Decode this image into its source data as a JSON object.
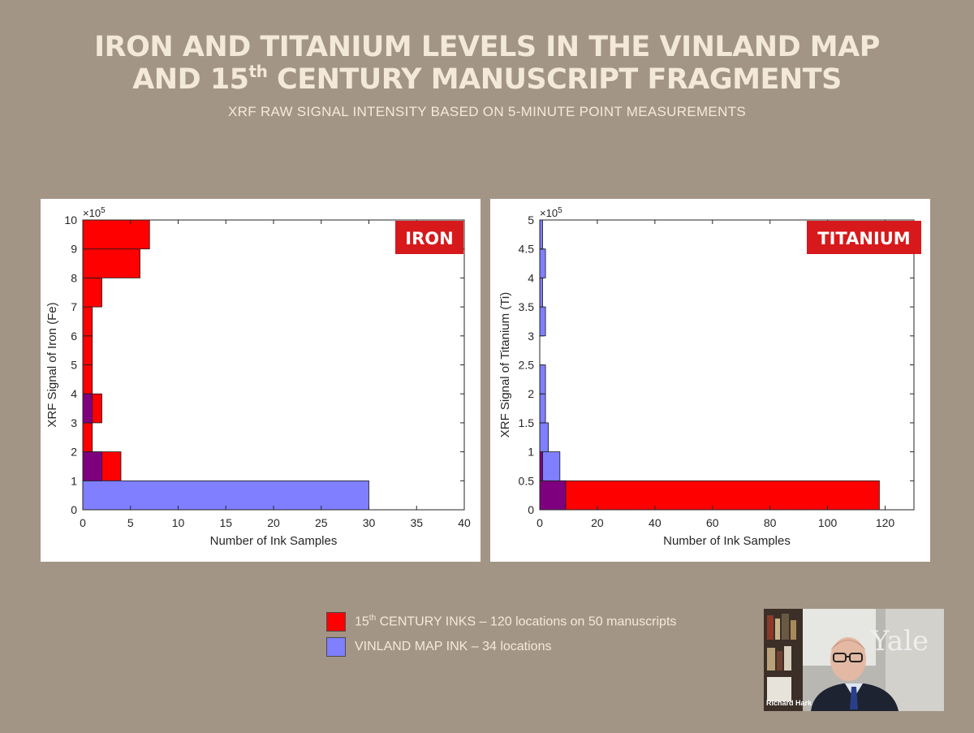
{
  "slide": {
    "title_line1": "IRON AND TITANIUM LEVELS IN THE VINLAND MAP",
    "title_line2_pre": "AND 15",
    "title_line2_sup": "th",
    "title_line2_post": " CENTURY MANUSCRIPT FRAGMENTS",
    "subtitle": "XRF RAW SIGNAL INTENSITY BASED ON 5-MINUTE POINT MEASUREMENTS"
  },
  "legend": {
    "items": [
      {
        "pre": "15",
        "sup": "th",
        "post": " CENTURY INKS – 120 locations on 50 manuscripts",
        "color": "#ff0000"
      },
      {
        "pre": "VINLAND MAP INK – 34 locations",
        "sup": "",
        "post": "",
        "color": "#7f7fff"
      }
    ]
  },
  "video": {
    "speaker_name": "Richard Hark",
    "logo_text": "Yale"
  },
  "colors": {
    "background": "#a39585",
    "red": "#ff0000",
    "blue": "#7f7fff",
    "overlap": "#7f007f",
    "tag": "#d7191c"
  },
  "chart_data": [
    {
      "type": "bar",
      "orientation": "horizontal",
      "tag": "IRON",
      "xlabel": "Number of Ink Samples",
      "ylabel": "XRF Signal of Iron (Fe)",
      "exponent": "×10",
      "exponent_power": "5",
      "xlim": [
        0,
        40
      ],
      "ylim": [
        0,
        10
      ],
      "xticks": [
        0,
        5,
        10,
        15,
        20,
        25,
        30,
        35,
        40
      ],
      "yticks": [
        0,
        1,
        2,
        3,
        4,
        5,
        6,
        7,
        8,
        9,
        10
      ],
      "bin_edges": [
        1,
        2,
        3,
        4,
        5,
        6,
        7,
        8,
        9,
        10
      ],
      "series": [
        {
          "name": "15th CENTURY INKS",
          "values": [
            4,
            1,
            2,
            1,
            1,
            1,
            2,
            6,
            7
          ]
        },
        {
          "name": "VINLAND MAP INK",
          "bin_edges": [
            0,
            1,
            2,
            3,
            4
          ],
          "values": [
            30,
            2,
            0,
            1
          ]
        }
      ]
    },
    {
      "type": "bar",
      "orientation": "horizontal",
      "tag": "TITANIUM",
      "xlabel": "Number of Ink Samples",
      "ylabel": "XRF Signal of Titanium (Ti)",
      "exponent": "×10",
      "exponent_power": "5",
      "xlim": [
        0,
        130
      ],
      "ylim": [
        0,
        5
      ],
      "xticks": [
        0,
        20,
        40,
        60,
        80,
        100,
        120
      ],
      "yticks": [
        0,
        0.5,
        1,
        1.5,
        2,
        2.5,
        3,
        3.5,
        4,
        4.5,
        5
      ],
      "bin_edges": [
        0,
        0.5,
        1
      ],
      "series": [
        {
          "name": "15th CENTURY INKS",
          "values": [
            118,
            1
          ]
        },
        {
          "name": "VINLAND MAP INK",
          "bin_edges": [
            0,
            0.5,
            1,
            1.5,
            2,
            2.5,
            3,
            3.5,
            4,
            4.5,
            5
          ],
          "values": [
            9,
            7,
            3,
            2,
            2,
            0,
            2,
            1,
            2,
            1
          ]
        }
      ]
    }
  ]
}
